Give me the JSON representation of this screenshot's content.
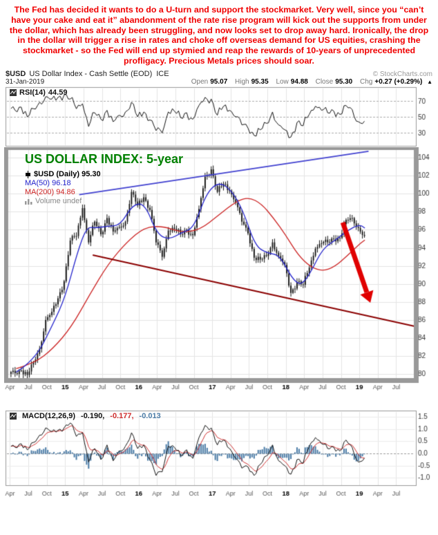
{
  "commentary": {
    "text": "The Fed has decided it wants to do a U-turn and support the stockmarket. Very well, since you “can’t have your cake and eat it” abandonment of the rate rise program will kick out the supports from under the dollar, which has already been struggling, and now looks set to drop away hard. Ironically, the drop in the dollar will trigger a rise in rates and choke off overseas demand for US equities, crashing the stockmarket - so the Fed will end up stymied and reap the rewards of 10-years of unprecedented profligacy. Precious Metals prices should soar."
  },
  "header": {
    "symbol": "$USD",
    "title": "US Dollar Index - Cash Settle (EOD)",
    "exchange": "ICE",
    "copyright": "© StockCharts.com",
    "date": "31-Jan-2019"
  },
  "quote": {
    "open_label": "Open",
    "open": "95.07",
    "high_label": "High",
    "high": "95.35",
    "low_label": "Low",
    "low": "94.88",
    "close_label": "Close",
    "close": "95.30",
    "chg_label": "Chg",
    "chg": "+0.27 (+0.29%)",
    "arrow": "▲"
  },
  "rsi_panel": {
    "label": "RSI(14)",
    "value": "44.59"
  },
  "main_panel": {
    "title": "US DOLLAR INDEX: 5-year",
    "series_label": "$USD (Daily) 95.30",
    "ma50_label": "MA(50) 96.18",
    "ma200_label": "MA(200) 94.86",
    "volume_label": "Volume undef"
  },
  "macd_panel": {
    "label": "MACD(12,26,9)",
    "v1": "-0.190,",
    "v2": "-0.177,",
    "v3": "-0.013"
  },
  "colors": {
    "commentary_red": "#f00000",
    "title_green": "#008000",
    "candle": "#111111",
    "ma50_blue": "#2222cc",
    "ma200_red": "#cc2222",
    "trend_blue": "#4040d0",
    "support_maroon": "#8b0000",
    "arrow_red": "#e00000",
    "macd_hist": "#4a7ba6",
    "signal_red": "#d03030",
    "rsi_line": "#111111",
    "grid": "#e4e4e4",
    "border": "#999999",
    "axis_text": "#333333"
  },
  "chart_data": [
    {
      "type": "line",
      "name": "RSI(14)",
      "last": 44.59,
      "ylim": [
        0,
        100
      ],
      "display_range": [
        15,
        85
      ],
      "gridlines": [
        70,
        50,
        30
      ],
      "values": [
        58,
        62,
        50,
        60,
        68,
        75,
        72,
        74,
        77,
        72,
        60,
        66,
        38,
        55,
        47,
        58,
        44,
        52,
        56,
        68,
        50,
        56,
        46,
        33,
        30,
        56,
        57,
        49,
        55,
        47,
        64,
        74,
        72,
        52,
        63,
        58,
        50,
        40,
        36,
        27,
        34,
        42,
        56,
        40,
        34,
        25,
        43,
        39,
        53,
        63,
        58,
        55,
        57,
        53,
        64,
        59,
        44,
        44.59
      ]
    },
    {
      "type": "candlestick",
      "name": "$USD US Dollar Index (Daily)",
      "title": "US DOLLAR INDEX: 5-year",
      "period_months_start": "Apr-2014",
      "period_months_end": "Jan-2019",
      "ohlc_last": {
        "open": 95.07,
        "high": 95.35,
        "low": 94.88,
        "close": 95.3,
        "chg_pct": "+0.29%"
      },
      "ma50_last": 96.18,
      "ma200_last": 94.86,
      "ylim": [
        79.4,
        105.0
      ],
      "yticks": [
        104,
        102,
        100,
        98,
        96,
        94,
        92,
        90,
        88,
        86,
        84,
        82,
        80
      ],
      "x_range": [
        -0.5,
        66
      ],
      "xticks": [
        {
          "m": 0,
          "t": "Apr"
        },
        {
          "m": 3,
          "t": "Jul"
        },
        {
          "m": 6,
          "t": "Oct"
        },
        {
          "m": 9,
          "t": "15",
          "y": 1
        },
        {
          "m": 12,
          "t": "Apr"
        },
        {
          "m": 15,
          "t": "Jul"
        },
        {
          "m": 18,
          "t": "Oct"
        },
        {
          "m": 21,
          "t": "16",
          "y": 1
        },
        {
          "m": 24,
          "t": "Apr"
        },
        {
          "m": 27,
          "t": "Jul"
        },
        {
          "m": 30,
          "t": "Oct"
        },
        {
          "m": 33,
          "t": "17",
          "y": 1
        },
        {
          "m": 36,
          "t": "Apr"
        },
        {
          "m": 39,
          "t": "Jul"
        },
        {
          "m": 42,
          "t": "Oct"
        },
        {
          "m": 45,
          "t": "18",
          "y": 1
        },
        {
          "m": 48,
          "t": "Apr"
        },
        {
          "m": 51,
          "t": "Jul"
        },
        {
          "m": 54,
          "t": "Oct"
        },
        {
          "m": 57,
          "t": "19",
          "y": 1
        },
        {
          "m": 60,
          "t": "Apr"
        },
        {
          "m": 63,
          "t": "Jul"
        }
      ],
      "monthly_close": [
        80.1,
        80.4,
        79.9,
        81.3,
        82.8,
        86.0,
        86.9,
        88.4,
        90.3,
        94.8,
        95.3,
        98.4,
        94.6,
        96.9,
        95.5,
        97.3,
        95.8,
        96.3,
        96.9,
        100.2,
        98.7,
        99.6,
        98.2,
        94.6,
        93.0,
        95.9,
        96.1,
        95.5,
        96.0,
        95.4,
        98.3,
        101.9,
        102.7,
        100.2,
        101.1,
        100.3,
        99.0,
        96.9,
        95.6,
        92.9,
        92.7,
        93.1,
        94.6,
        93.1,
        92.1,
        89.0,
        90.2,
        89.9,
        91.8,
        93.9,
        94.5,
        94.6,
        95.0,
        95.1,
        97.1,
        97.3,
        96.2,
        95.3
      ],
      "ma50_points": [
        [
          1,
          80.2
        ],
        [
          4,
          81.5
        ],
        [
          7,
          85.5
        ],
        [
          9,
          88.5
        ],
        [
          11,
          93.5
        ],
        [
          12.5,
          96.3
        ],
        [
          14,
          96.2
        ],
        [
          16,
          96.4
        ],
        [
          18,
          96.5
        ],
        [
          20,
          98.8
        ],
        [
          22,
          98.9
        ],
        [
          24,
          95.5
        ],
        [
          26,
          94.9
        ],
        [
          28,
          95.7
        ],
        [
          30,
          96.2
        ],
        [
          32,
          100.0
        ],
        [
          34,
          101.3
        ],
        [
          36,
          100.5
        ],
        [
          38,
          98.2
        ],
        [
          40,
          94.2
        ],
        [
          42,
          93.4
        ],
        [
          44,
          93.2
        ],
        [
          46,
          90.6
        ],
        [
          47.5,
          89.8
        ],
        [
          49,
          91.2
        ],
        [
          51,
          93.9
        ],
        [
          53,
          94.8
        ],
        [
          55,
          95.9
        ],
        [
          57,
          96.6
        ],
        [
          57.9,
          96.18
        ]
      ],
      "ma200_points": [
        [
          1,
          80.6
        ],
        [
          4,
          81.2
        ],
        [
          7,
          82.8
        ],
        [
          10,
          85.2
        ],
        [
          13,
          88.8
        ],
        [
          16,
          92.2
        ],
        [
          19,
          94.6
        ],
        [
          22,
          96.3
        ],
        [
          25,
          96.4
        ],
        [
          28,
          95.7
        ],
        [
          31,
          96.0
        ],
        [
          34,
          97.6
        ],
        [
          37,
          99.2
        ],
        [
          39,
          99.6
        ],
        [
          41,
          98.9
        ],
        [
          43,
          97.3
        ],
        [
          45,
          95.4
        ],
        [
          47,
          93.2
        ],
        [
          49,
          91.9
        ],
        [
          51,
          91.4
        ],
        [
          53,
          91.9
        ],
        [
          55,
          93.1
        ],
        [
          57,
          94.4
        ],
        [
          57.9,
          94.86
        ]
      ],
      "trendline_blue": {
        "from": [
          11.3,
          99.9
        ],
        "to": [
          58.5,
          104.7
        ]
      },
      "trendline_maroon": {
        "from": [
          13.5,
          93.2
        ],
        "to": [
          66,
          85.3
        ]
      },
      "arrow": {
        "from": [
          54.3,
          96.8
        ],
        "to": [
          58.8,
          87.9
        ]
      }
    },
    {
      "type": "macd",
      "name": "MACD(12,26,9)",
      "last": {
        "macd": -0.19,
        "signal": -0.177,
        "hist": -0.013
      },
      "ylim": [
        -1.3,
        1.7
      ],
      "yticks": [
        "1.5",
        "1.0",
        "0.5",
        "0.0",
        "-0.5",
        "-1.0"
      ],
      "ytick_vals": [
        1.5,
        1.0,
        0.5,
        0.0,
        -0.5,
        -1.0
      ],
      "values": [
        0.25,
        0.4,
        0.15,
        0.45,
        0.75,
        1.05,
        0.9,
        0.95,
        1.05,
        1.25,
        0.7,
        0.85,
        -0.35,
        0.2,
        -0.25,
        0.35,
        -0.3,
        0.1,
        0.3,
        0.85,
        0.2,
        0.35,
        -0.25,
        -0.9,
        -0.75,
        0.3,
        0.25,
        -0.1,
        0.15,
        -0.2,
        0.65,
        1.15,
        1.05,
        0.35,
        0.55,
        0.2,
        -0.2,
        -0.6,
        -0.55,
        -0.9,
        -0.45,
        -0.1,
        0.35,
        -0.3,
        -0.5,
        -0.85,
        -0.25,
        -0.4,
        0.3,
        0.65,
        0.4,
        0.2,
        0.25,
        0.1,
        0.55,
        0.25,
        -0.35,
        -0.19
      ]
    }
  ]
}
